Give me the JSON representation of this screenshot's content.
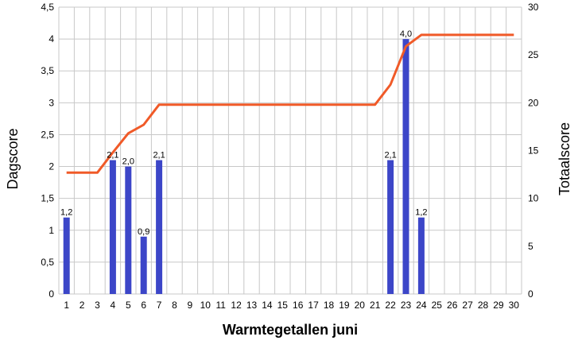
{
  "chart_data": {
    "type": "bar",
    "xlabel": "Warmtegetallen juni",
    "ylabel": "Dagscore",
    "y2label": "Totaalscore",
    "ylim": [
      0,
      4.5
    ],
    "y2lim": [
      0,
      30
    ],
    "y_ticks": [
      "0",
      "0,5",
      "1",
      "1,5",
      "2",
      "2,5",
      "3",
      "3,5",
      "4",
      "4,5"
    ],
    "y2_ticks": [
      "0",
      "5",
      "10",
      "15",
      "20",
      "25",
      "30"
    ],
    "categories": [
      "1",
      "2",
      "3",
      "4",
      "5",
      "6",
      "7",
      "8",
      "9",
      "10",
      "11",
      "12",
      "13",
      "14",
      "15",
      "16",
      "17",
      "18",
      "19",
      "20",
      "21",
      "22",
      "23",
      "24",
      "25",
      "26",
      "27",
      "28",
      "29",
      "30"
    ],
    "grid": true,
    "legend": "none",
    "series": [
      {
        "type": "bar",
        "axis": "left",
        "color": "#3c46c8",
        "values": [
          1.2,
          0,
          0,
          2.1,
          2.0,
          0.9,
          2.1,
          0,
          0,
          0,
          0,
          0,
          0,
          0,
          0,
          0,
          0,
          0,
          0,
          0,
          0,
          2.1,
          4.0,
          1.2,
          0,
          0,
          0,
          0,
          0,
          0
        ],
        "labels": [
          "1,2",
          "",
          "",
          "2,1",
          "2,0",
          "0,9",
          "2,1",
          "",
          "",
          "",
          "",
          "",
          "",
          "",
          "",
          "",
          "",
          "",
          "",
          "",
          "",
          "2,1",
          "4,0",
          "1,2",
          "",
          "",
          "",
          "",
          "",
          ""
        ]
      },
      {
        "type": "line",
        "axis": "right",
        "color": "#f05a28",
        "values": [
          12.7,
          12.7,
          12.7,
          14.8,
          16.8,
          17.7,
          19.8,
          19.8,
          19.8,
          19.8,
          19.8,
          19.8,
          19.8,
          19.8,
          19.8,
          19.8,
          19.8,
          19.8,
          19.8,
          19.8,
          19.8,
          21.9,
          25.9,
          27.1,
          27.1,
          27.1,
          27.1,
          27.1,
          27.1,
          27.1
        ]
      }
    ]
  }
}
